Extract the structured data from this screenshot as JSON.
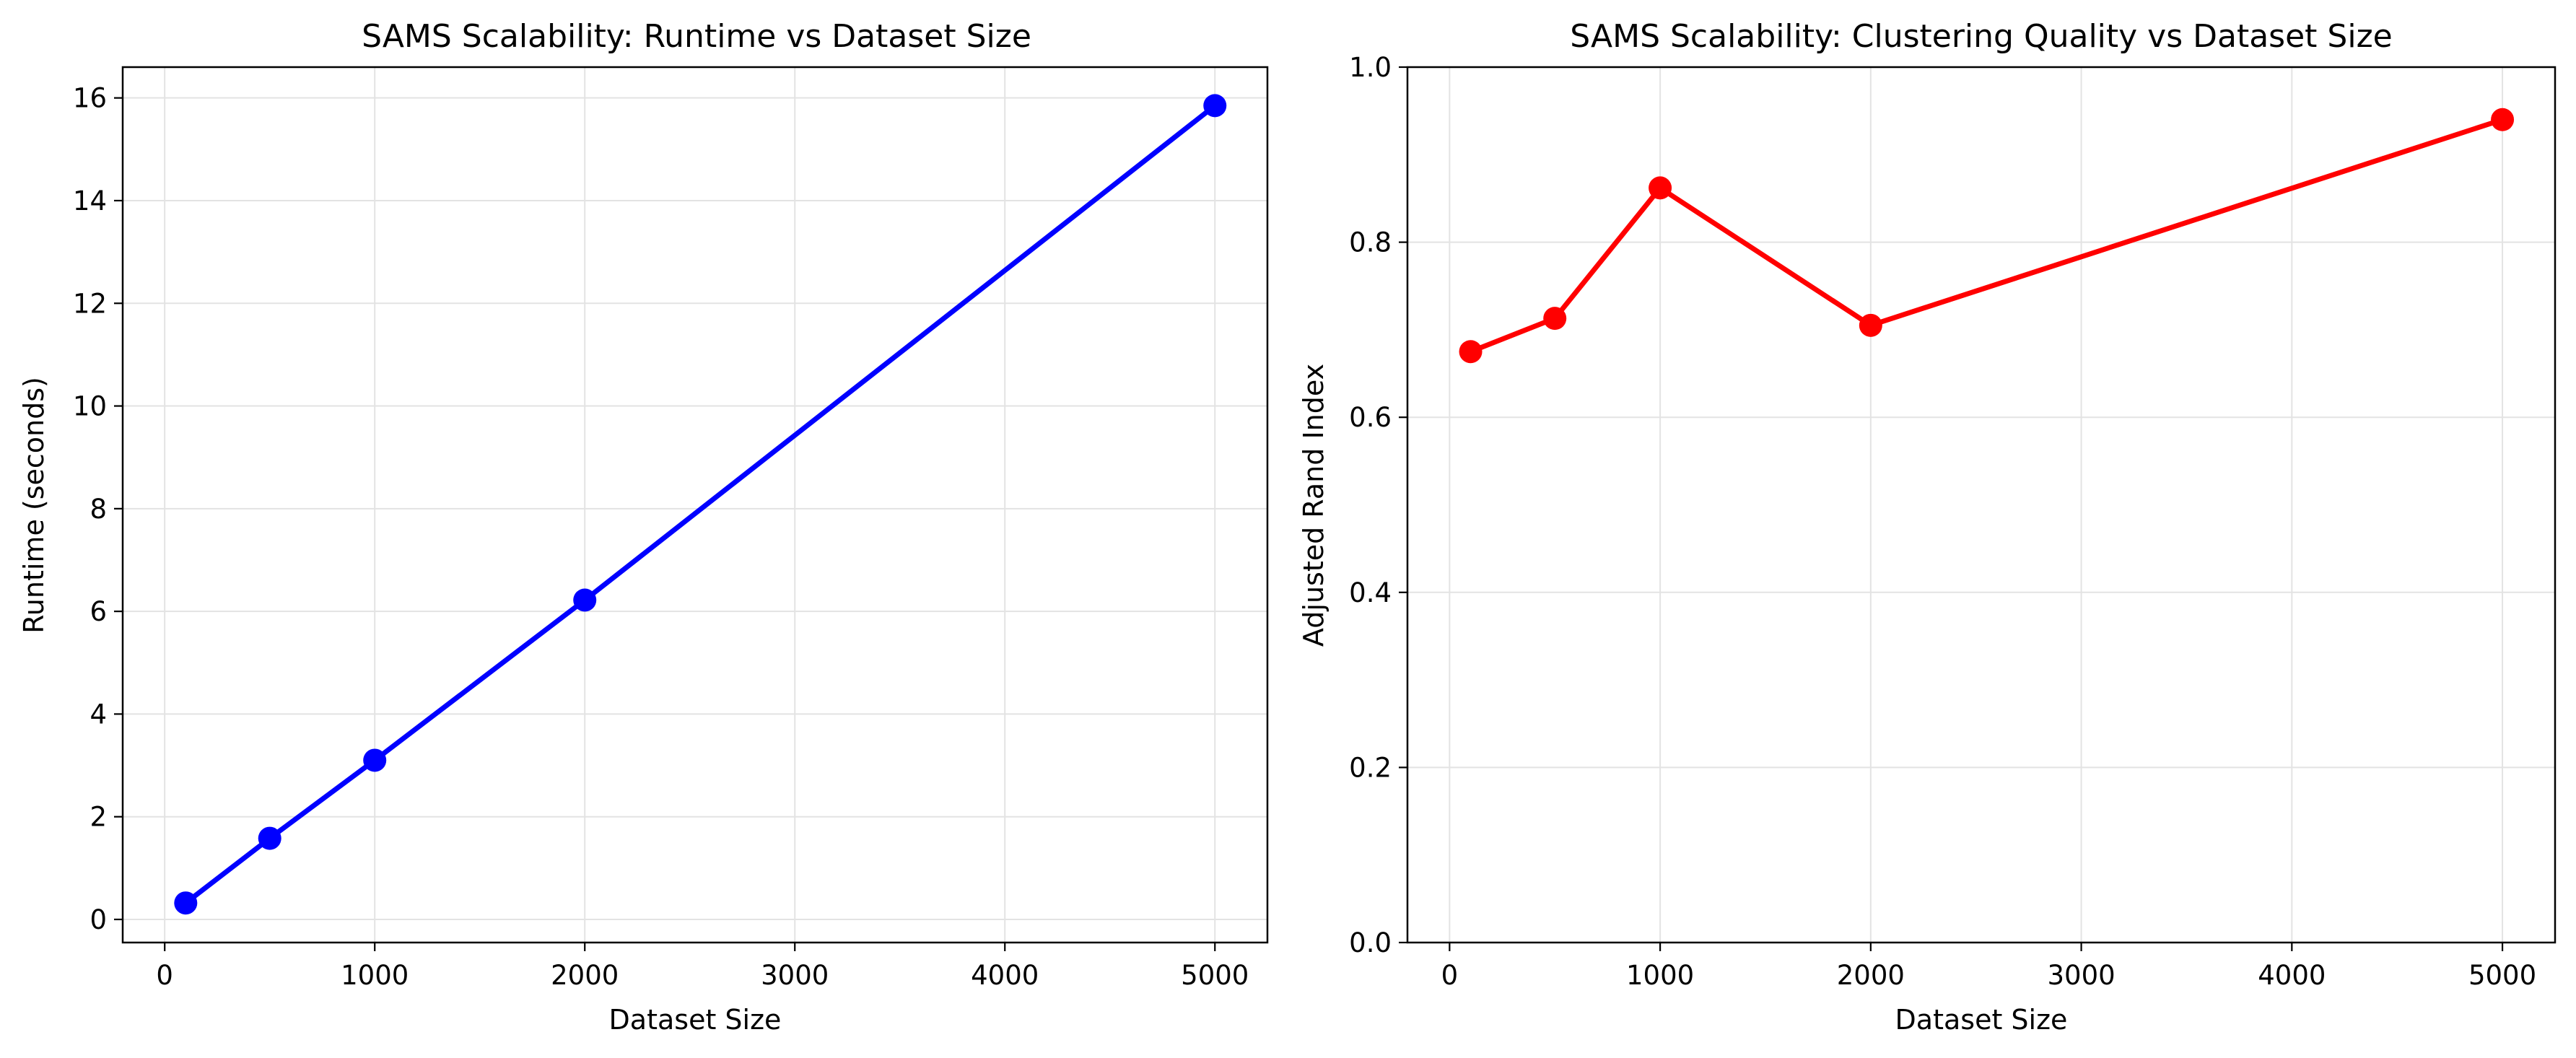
{
  "chart_data": [
    {
      "type": "line",
      "title": "SAMS Scalability: Runtime vs Dataset Size",
      "xlabel": "Dataset Size",
      "ylabel": "Runtime (seconds)",
      "xlim": [
        -200,
        5250
      ],
      "ylim": [
        -0.45,
        16.6
      ],
      "xticks": [
        0,
        1000,
        2000,
        3000,
        4000,
        5000
      ],
      "yticks": [
        0,
        2,
        4,
        6,
        8,
        10,
        12,
        14,
        16
      ],
      "grid": true,
      "series": [
        {
          "color": "#0000ff",
          "x": [
            100,
            500,
            1000,
            2000,
            5000
          ],
          "y": [
            0.32,
            1.58,
            3.1,
            6.22,
            15.85
          ]
        }
      ]
    },
    {
      "type": "line",
      "title": "SAMS Scalability: Clustering Quality vs Dataset Size",
      "xlabel": "Dataset Size",
      "ylabel": "Adjusted Rand Index",
      "xlim": [
        -200,
        5250
      ],
      "ylim": [
        0.0,
        1.0
      ],
      "xticks": [
        0,
        1000,
        2000,
        3000,
        4000,
        5000
      ],
      "yticks": [
        0.0,
        0.2,
        0.4,
        0.6,
        0.8,
        1.0
      ],
      "ytick_labels": [
        "0.0",
        "0.2",
        "0.4",
        "0.6",
        "0.8",
        "1.0"
      ],
      "grid": true,
      "series": [
        {
          "color": "#ff0000",
          "x": [
            100,
            500,
            1000,
            2000,
            5000
          ],
          "y": [
            0.675,
            0.713,
            0.862,
            0.705,
            0.94
          ]
        }
      ]
    }
  ]
}
